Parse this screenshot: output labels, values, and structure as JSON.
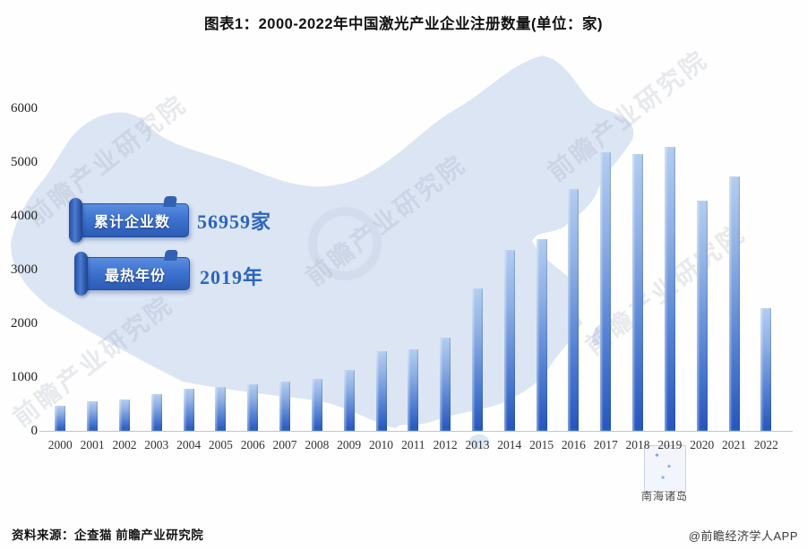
{
  "page": {
    "title": "图表1：2000-2022年中国激光产业企业注册数量(单位：家)"
  },
  "chart_data": {
    "type": "bar",
    "title": "图表1：2000-2022年中国激光产业企业注册数量(单位：家)",
    "unit": "家",
    "categories": [
      "2000",
      "2001",
      "2002",
      "2003",
      "2004",
      "2005",
      "2006",
      "2007",
      "2008",
      "2009",
      "2010",
      "2011",
      "2012",
      "2013",
      "2014",
      "2015",
      "2016",
      "2017",
      "2018",
      "2019",
      "2020",
      "2021",
      "2022"
    ],
    "values": [
      470,
      550,
      590,
      690,
      790,
      820,
      870,
      910,
      960,
      1140,
      1480,
      1510,
      1730,
      2650,
      3370,
      3560,
      4500,
      5180,
      5150,
      5280,
      4290,
      4730,
      2280
    ],
    "xlabel": "",
    "ylabel": "",
    "ylim": [
      0,
      6000
    ],
    "yticks": [
      0,
      1000,
      2000,
      3000,
      4000,
      5000,
      6000
    ],
    "grid": false,
    "legend": null,
    "annotations": [
      {
        "label": "累计企业数",
        "value": "56959家"
      },
      {
        "label": "最热年份",
        "value": "2019年"
      }
    ]
  },
  "callouts": [
    {
      "label": "累计企业数",
      "value": "56959家"
    },
    {
      "label": "最热年份",
      "value": "2019年"
    }
  ],
  "map": {
    "inset_label": "南海诸岛"
  },
  "watermark": {
    "text": "前瞻产业研究院"
  },
  "footer": {
    "source": "资料来源：企查猫 前瞻产业研究院",
    "credit": "@前瞻经济学人APP"
  },
  "colors": {
    "bar_top": "#b3cdf0",
    "bar_bottom": "#2456bc",
    "map_fill": "#dbe5f4",
    "ribbon_blue": "#3d73cf",
    "value_text": "#2b66bd"
  }
}
